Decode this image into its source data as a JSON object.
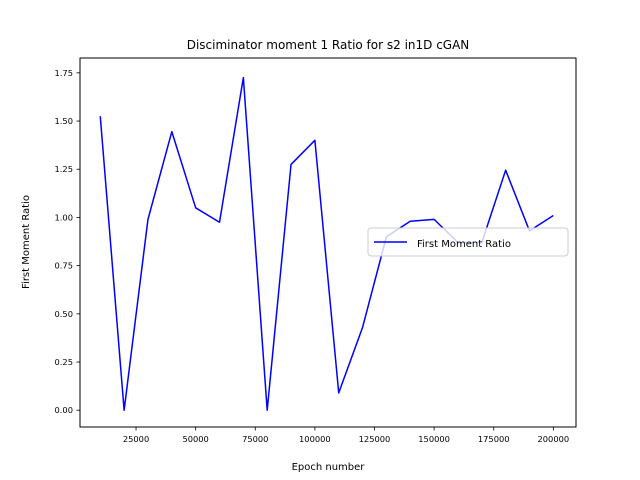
{
  "chart_data": {
    "type": "line",
    "title": "Disciminator moment 1 Ratio for s2 in1D cGAN",
    "xlabel": "Epoch number",
    "ylabel": "First Moment Ratio",
    "xlim": [
      1500,
      209500
    ],
    "ylim": [
      -0.087,
      1.827
    ],
    "x_ticks": [
      25000,
      50000,
      75000,
      100000,
      125000,
      150000,
      175000,
      200000
    ],
    "x_tick_labels": [
      "25000",
      "50000",
      "75000",
      "100000",
      "125000",
      "150000",
      "175000",
      "200000"
    ],
    "y_ticks": [
      0.0,
      0.25,
      0.5,
      0.75,
      1.0,
      1.25,
      1.5,
      1.75
    ],
    "y_tick_labels": [
      "0.00",
      "0.25",
      "0.50",
      "0.75",
      "1.00",
      "1.25",
      "1.50",
      "1.75"
    ],
    "grid": false,
    "legend_position": "center-right",
    "series": [
      {
        "name": "First Moment Ratio",
        "color": "#0000ff",
        "x": [
          10000,
          20000,
          30000,
          40000,
          50000,
          60000,
          70000,
          80000,
          90000,
          100000,
          110000,
          120000,
          130000,
          140000,
          150000,
          160000,
          170000,
          180000,
          190000,
          200000
        ],
        "y": [
          1.525,
          0.0,
          0.99,
          1.445,
          1.05,
          0.975,
          1.725,
          0.0,
          1.275,
          1.4,
          0.09,
          0.43,
          0.9,
          0.98,
          0.99,
          0.87,
          0.87,
          1.245,
          0.93,
          1.01
        ]
      }
    ]
  }
}
